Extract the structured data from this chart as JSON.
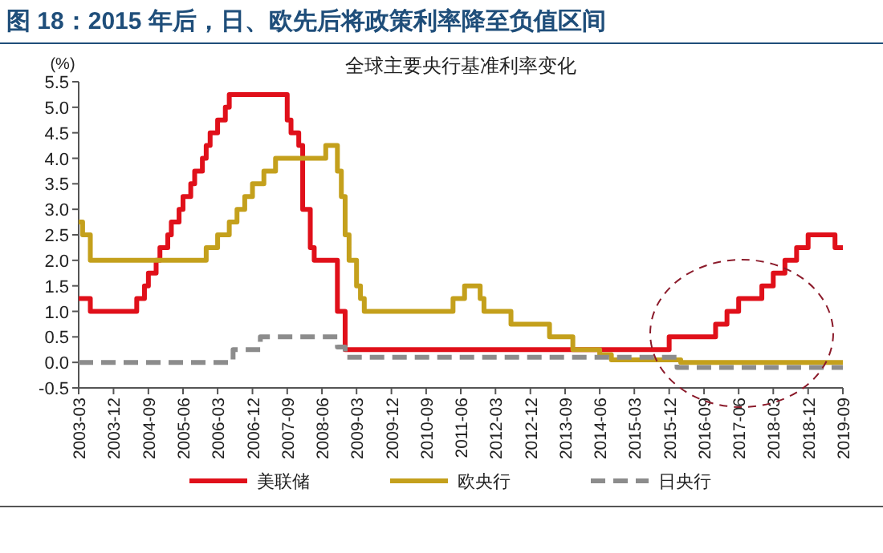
{
  "chart_data": {
    "type": "step",
    "title": "图 18：2015 年后，日、欧先后将政策利率降至负值区间",
    "subtitle": "全球主要央行基准利率变化",
    "ylabel": "(%)",
    "xlim": [
      "2003-03",
      "2019-09"
    ],
    "xticks": [
      {
        "value": "2003-03",
        "label": "2003-03"
      },
      {
        "value": "2003-12",
        "label": "2003-12"
      },
      {
        "value": "2004-09",
        "label": "2004-09"
      },
      {
        "value": "2005-06",
        "label": "2005-06"
      },
      {
        "value": "2006-03",
        "label": "2006-03"
      },
      {
        "value": "2006-12",
        "label": "2006-12"
      },
      {
        "value": "2007-09",
        "label": "2007-09"
      },
      {
        "value": "2008-06",
        "label": "2008-06"
      },
      {
        "value": "2009-03",
        "label": "2009-03"
      },
      {
        "value": "2009-12",
        "label": "2009-12"
      },
      {
        "value": "2010-09",
        "label": "2010-09"
      },
      {
        "value": "2011-06",
        "label": "2011-06"
      },
      {
        "value": "2012-03",
        "label": "2012-03"
      },
      {
        "value": "2012-12",
        "label": "2012-12"
      },
      {
        "value": "2013-09",
        "label": "2013-09"
      },
      {
        "value": "2014-06",
        "label": "2014-06"
      },
      {
        "value": "2015-03",
        "label": "2015-03"
      },
      {
        "value": "2015-12",
        "label": "2015-12"
      },
      {
        "value": "2016-09",
        "label": "2016-09"
      },
      {
        "value": "2017-06",
        "label": "2017-06"
      },
      {
        "value": "2018-03",
        "label": "2018-03"
      },
      {
        "value": "2018-12",
        "label": "2018-12"
      },
      {
        "value": "2019-09",
        "label": "2019-09"
      }
    ],
    "ylim": [
      -0.5,
      5.5
    ],
    "yticks": [
      {
        "value": -0.5,
        "label": "-0.5"
      },
      {
        "value": 0,
        "label": "0.0"
      },
      {
        "value": 0.5,
        "label": "0.5"
      },
      {
        "value": 1,
        "label": "1.0"
      },
      {
        "value": 1.5,
        "label": "1.5"
      },
      {
        "value": 2,
        "label": "2.0"
      },
      {
        "value": 2.5,
        "label": "2.5"
      },
      {
        "value": 3,
        "label": "3.0"
      },
      {
        "value": 3.5,
        "label": "3.5"
      },
      {
        "value": 4,
        "label": "4.0"
      },
      {
        "value": 4.5,
        "label": "4.5"
      },
      {
        "value": 5,
        "label": "5.0"
      },
      {
        "value": 5.5,
        "label": "5.5"
      }
    ],
    "grid": false,
    "legend": "bottom",
    "series": [
      {
        "name": "美联储",
        "color": "#e0101a",
        "line_style": "solid",
        "x": [
          "2003-03",
          "2003-06",
          "2004-06",
          "2004-08",
          "2004-09",
          "2004-11",
          "2004-12",
          "2005-02",
          "2005-03",
          "2005-05",
          "2005-06",
          "2005-08",
          "2005-09",
          "2005-11",
          "2005-12",
          "2006-01",
          "2006-03",
          "2006-05",
          "2006-06",
          "2007-09",
          "2007-10",
          "2007-12",
          "2008-01",
          "2008-03",
          "2008-04",
          "2008-10",
          "2008-12",
          "2015-12",
          "2016-12",
          "2017-03",
          "2017-06",
          "2017-12",
          "2018-03",
          "2018-06",
          "2018-09",
          "2018-12",
          "2019-07",
          "2019-09"
        ],
        "values": [
          1.25,
          1.0,
          1.25,
          1.5,
          1.75,
          2.0,
          2.25,
          2.5,
          2.75,
          3.0,
          3.25,
          3.5,
          3.75,
          4.0,
          4.25,
          4.5,
          4.75,
          5.0,
          5.25,
          4.75,
          4.5,
          4.25,
          3.0,
          2.25,
          2.0,
          1.0,
          0.25,
          0.5,
          0.75,
          1.0,
          1.25,
          1.5,
          1.75,
          2.0,
          2.25,
          2.5,
          2.25,
          2.25
        ]
      },
      {
        "name": "欧央行",
        "color": "#c4a01c",
        "line_style": "solid",
        "x": [
          "2003-03",
          "2003-04",
          "2003-06",
          "2005-12",
          "2006-03",
          "2006-06",
          "2006-08",
          "2006-10",
          "2006-12",
          "2007-03",
          "2007-06",
          "2008-07",
          "2008-10",
          "2008-11",
          "2008-12",
          "2009-01",
          "2009-03",
          "2009-04",
          "2009-05",
          "2011-04",
          "2011-07",
          "2011-11",
          "2011-12",
          "2012-07",
          "2013-05",
          "2013-11",
          "2014-06",
          "2014-09",
          "2016-03",
          "2019-09"
        ],
        "values": [
          2.75,
          2.5,
          2.0,
          2.25,
          2.5,
          2.75,
          3.0,
          3.25,
          3.5,
          3.75,
          4.0,
          4.25,
          3.75,
          3.25,
          2.5,
          2.0,
          1.5,
          1.25,
          1.0,
          1.25,
          1.5,
          1.25,
          1.0,
          0.75,
          0.5,
          0.25,
          0.15,
          0.05,
          0.0,
          0.0
        ]
      },
      {
        "name": "日央行",
        "color": "#8c8c8c",
        "line_style": "dashed",
        "x": [
          "2003-03",
          "2006-07",
          "2007-02",
          "2008-10",
          "2008-12",
          "2016-02",
          "2019-09"
        ],
        "values": [
          0.0,
          0.25,
          0.5,
          0.3,
          0.1,
          -0.1,
          -0.1
        ]
      }
    ]
  }
}
